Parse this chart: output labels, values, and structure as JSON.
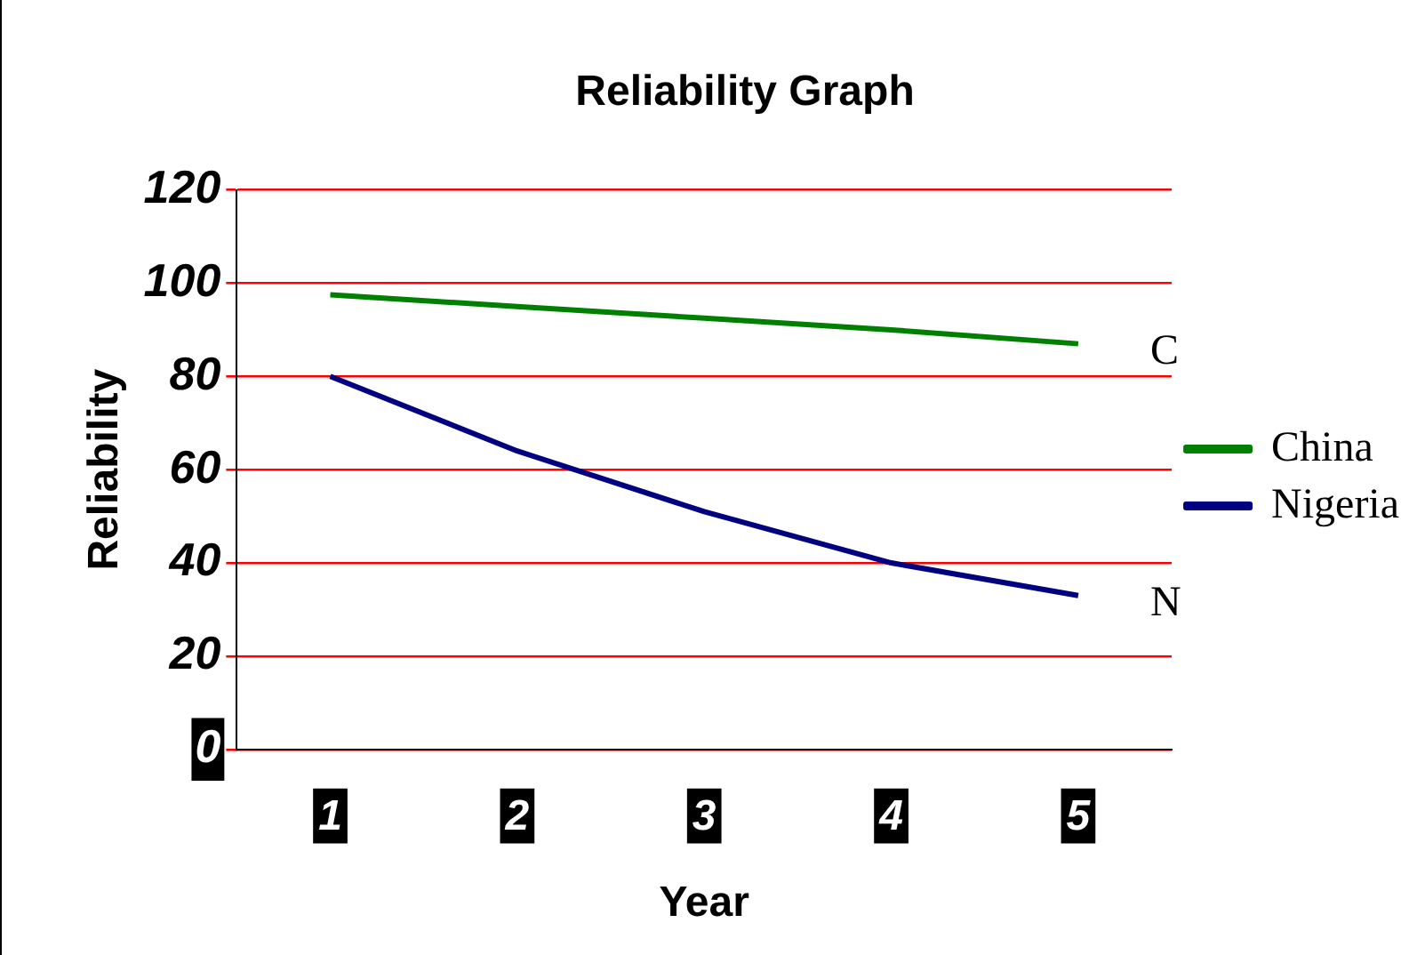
{
  "chart_data": {
    "type": "line",
    "title": "Reliability Graph",
    "xlabel": "Year",
    "ylabel": "Reliability",
    "categories": [
      "1",
      "2",
      "3",
      "4",
      "5"
    ],
    "series": [
      {
        "name": "China",
        "color": "#008000",
        "values": [
          97.5,
          95,
          92.5,
          90,
          87
        ]
      },
      {
        "name": "Nigeria",
        "color": "#000080",
        "values": [
          80,
          64,
          51,
          40,
          33
        ]
      }
    ],
    "ylim": [
      0,
      120
    ],
    "yticks": [
      0,
      20,
      40,
      60,
      80,
      100,
      120
    ],
    "grid": "y",
    "legend": "right",
    "marker": "none",
    "annotations": [
      "C",
      "N"
    ]
  }
}
